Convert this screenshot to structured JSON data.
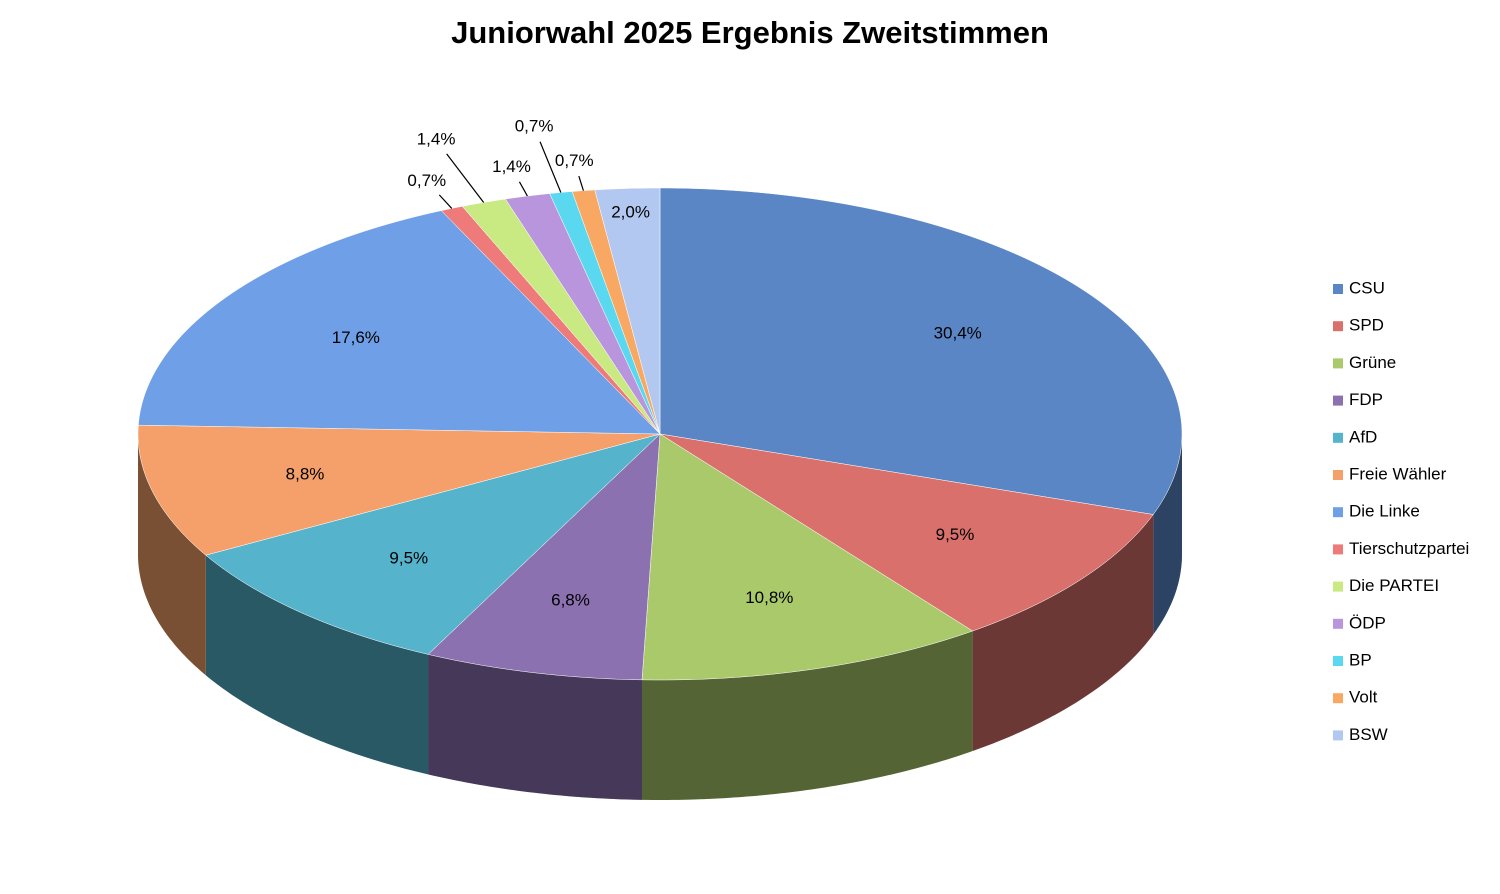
{
  "chart_data": {
    "type": "pie",
    "title": "Juniorwahl 2025 Ergebnis Zweitstimmen",
    "categories": [
      "CSU",
      "SPD",
      "Grüne",
      "FDP",
      "AfD",
      "Freie Wähler",
      "Die Linke",
      "Tierschutzpartei",
      "Die PARTEI",
      "ÖDP",
      "BP",
      "Volt",
      "BSW"
    ],
    "values": [
      30.4,
      9.5,
      10.8,
      6.8,
      9.5,
      8.8,
      17.6,
      0.7,
      1.4,
      1.4,
      0.7,
      0.7,
      2.0
    ],
    "value_labels": [
      "30,4%",
      "9,5%",
      "10,8%",
      "6,8%",
      "9,5%",
      "8,8%",
      "17,6%",
      "0,7%",
      "1,4%",
      "1,4%",
      "0,7%",
      "0,7%",
      "2,0%"
    ],
    "colors": [
      "#5b86c6",
      "#d9706c",
      "#a9c96b",
      "#8c71b0",
      "#55b3cc",
      "#f5a06a",
      "#6f9fe6",
      "#ee7a7a",
      "#c9ea82",
      "#b895dc",
      "#5ad8ef",
      "#f8a862",
      "#b3c8f0"
    ],
    "legend": "right"
  }
}
